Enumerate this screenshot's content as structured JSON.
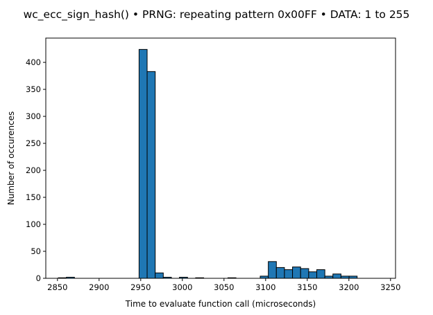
{
  "chart_data": {
    "type": "bar",
    "title": "wc_ecc_sign_hash() • PRNG: repeating pattern 0x00FF • DATA: 1 to 255",
    "xlabel": "Time to evaluate function call (microseconds)",
    "ylabel": "Number of occurences",
    "xlim": [
      2836,
      3256
    ],
    "ylim": [
      0,
      445
    ],
    "x_ticks": [
      2850,
      2900,
      2950,
      3000,
      3050,
      3100,
      3150,
      3200,
      3250
    ],
    "y_ticks": [
      0,
      50,
      100,
      150,
      200,
      250,
      300,
      350,
      400
    ],
    "bin_width": 9.7,
    "bins": [
      {
        "x0": 2851.0,
        "count": 1
      },
      {
        "x0": 2860.7,
        "count": 2
      },
      {
        "x0": 2870.4,
        "count": 0
      },
      {
        "x0": 2880.1,
        "count": 0
      },
      {
        "x0": 2889.8,
        "count": 0
      },
      {
        "x0": 2899.5,
        "count": 0
      },
      {
        "x0": 2909.2,
        "count": 0
      },
      {
        "x0": 2918.9,
        "count": 0
      },
      {
        "x0": 2928.6,
        "count": 0
      },
      {
        "x0": 2938.3,
        "count": 0
      },
      {
        "x0": 2948.0,
        "count": 424
      },
      {
        "x0": 2957.7,
        "count": 383
      },
      {
        "x0": 2967.4,
        "count": 10
      },
      {
        "x0": 2977.1,
        "count": 2
      },
      {
        "x0": 2986.8,
        "count": 0
      },
      {
        "x0": 2996.5,
        "count": 2
      },
      {
        "x0": 3006.2,
        "count": 0
      },
      {
        "x0": 3015.9,
        "count": 1
      },
      {
        "x0": 3025.6,
        "count": 0
      },
      {
        "x0": 3035.3,
        "count": 0
      },
      {
        "x0": 3045.0,
        "count": 0
      },
      {
        "x0": 3054.7,
        "count": 1
      },
      {
        "x0": 3064.4,
        "count": 0
      },
      {
        "x0": 3074.1,
        "count": 0
      },
      {
        "x0": 3083.8,
        "count": 0
      },
      {
        "x0": 3093.5,
        "count": 4
      },
      {
        "x0": 3103.2,
        "count": 31
      },
      {
        "x0": 3112.9,
        "count": 20
      },
      {
        "x0": 3122.6,
        "count": 16
      },
      {
        "x0": 3132.3,
        "count": 21
      },
      {
        "x0": 3142.0,
        "count": 18
      },
      {
        "x0": 3151.7,
        "count": 12
      },
      {
        "x0": 3161.4,
        "count": 16
      },
      {
        "x0": 3171.1,
        "count": 4
      },
      {
        "x0": 3180.8,
        "count": 8
      },
      {
        "x0": 3190.5,
        "count": 4
      },
      {
        "x0": 3200.2,
        "count": 4
      }
    ],
    "bar_color": "#1f77b4",
    "edge_color": "#000000",
    "grid": false,
    "legend": "none"
  }
}
